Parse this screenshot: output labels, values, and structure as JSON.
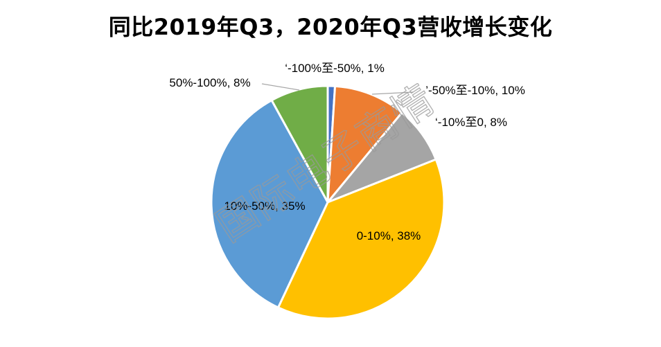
{
  "chart_data": {
    "type": "pie",
    "title": "同比2019年Q3，2020年Q3营收增长变化",
    "slices": [
      {
        "label": "‘-100%至-50%, 1%",
        "category": "-100%至-50%",
        "value": 1,
        "color": "#4472C4"
      },
      {
        "label": "’-50%至-10%, 10%",
        "category": "-50%至-10%",
        "value": 10,
        "color": "#ED7D31"
      },
      {
        "label": "‘-10%至0, 8%",
        "category": "-10%至0",
        "value": 8,
        "color": "#A5A5A5"
      },
      {
        "label": "0-10%, 38%",
        "category": "0-10%",
        "value": 38,
        "color": "#FFC000"
      },
      {
        "label": "10%-50%, 35%",
        "category": "10%-50%",
        "value": 35,
        "color": "#5B9BD5"
      },
      {
        "label": "50%-100%, 8%",
        "category": "50%-100%",
        "value": 8,
        "color": "#70AD47"
      }
    ]
  },
  "watermark": "国际电子商情"
}
